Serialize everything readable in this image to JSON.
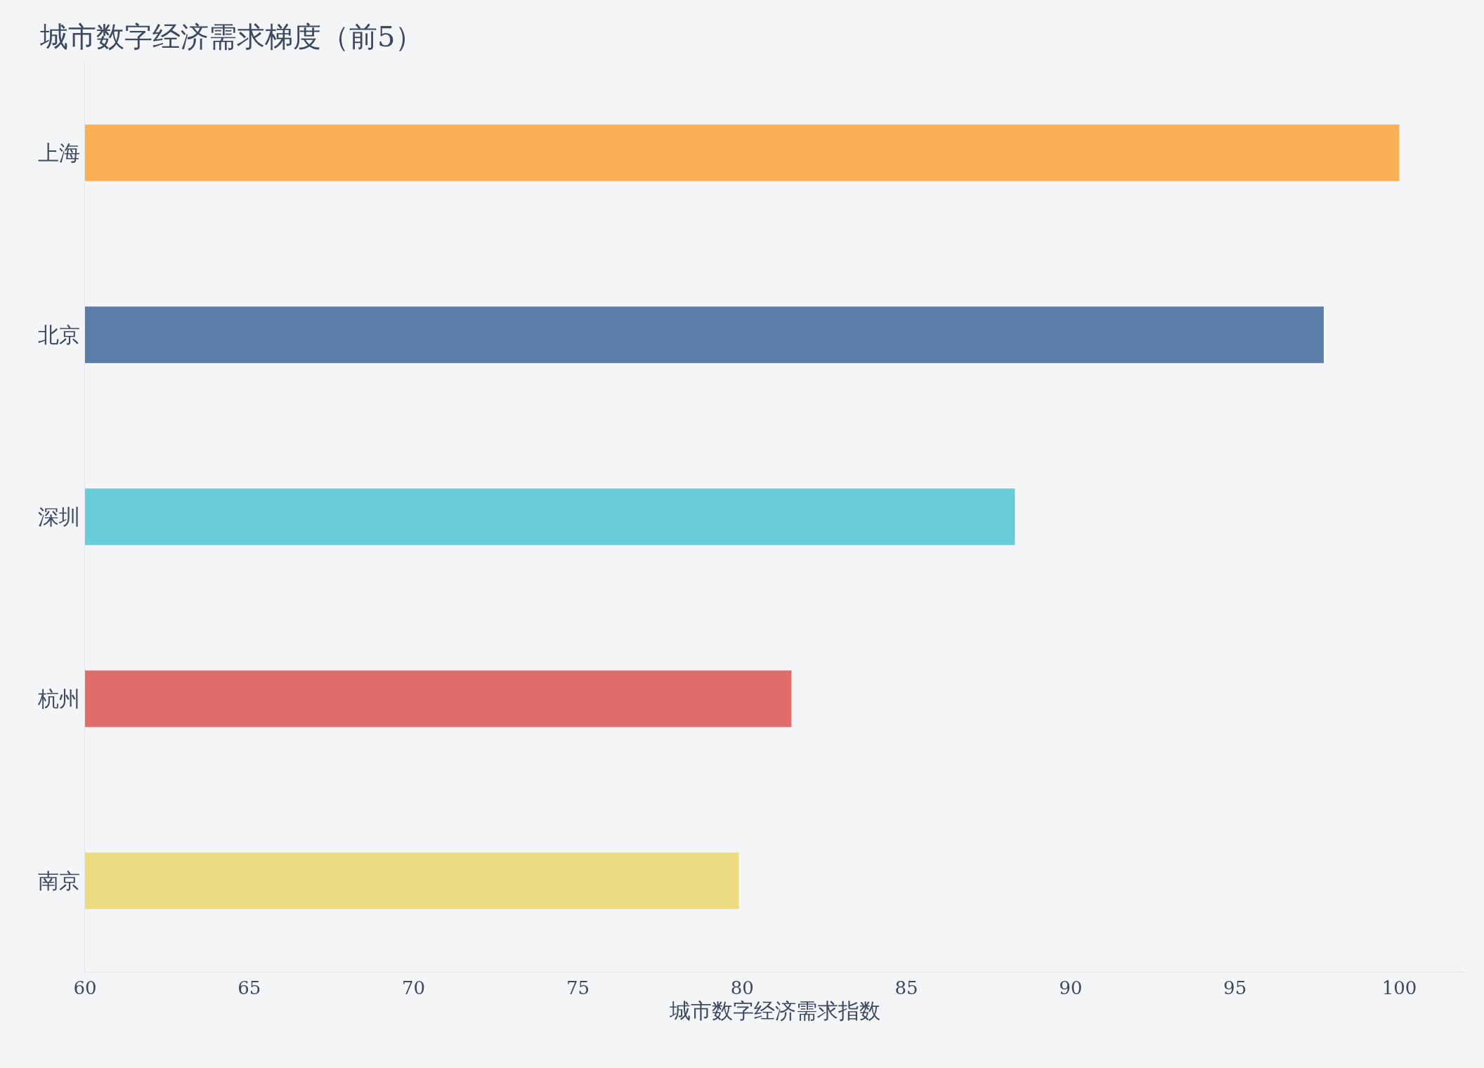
{
  "chart_data": {
    "type": "bar",
    "orientation": "horizontal",
    "title": "城市数字经济需求梯度（前5）",
    "xlabel": "城市数字经济需求指数",
    "categories": [
      "上海",
      "北京",
      "深圳",
      "杭州",
      "南京"
    ],
    "values": [
      100,
      97.7,
      88.3,
      81.5,
      79.9
    ],
    "colors": [
      "#f9b057",
      "#5b7ea8",
      "#68cdd9",
      "#e06c6b",
      "#ebdc82"
    ],
    "xlim": [
      60,
      102
    ],
    "xticks": [
      60,
      65,
      70,
      75,
      80,
      85,
      90,
      95,
      100
    ]
  }
}
